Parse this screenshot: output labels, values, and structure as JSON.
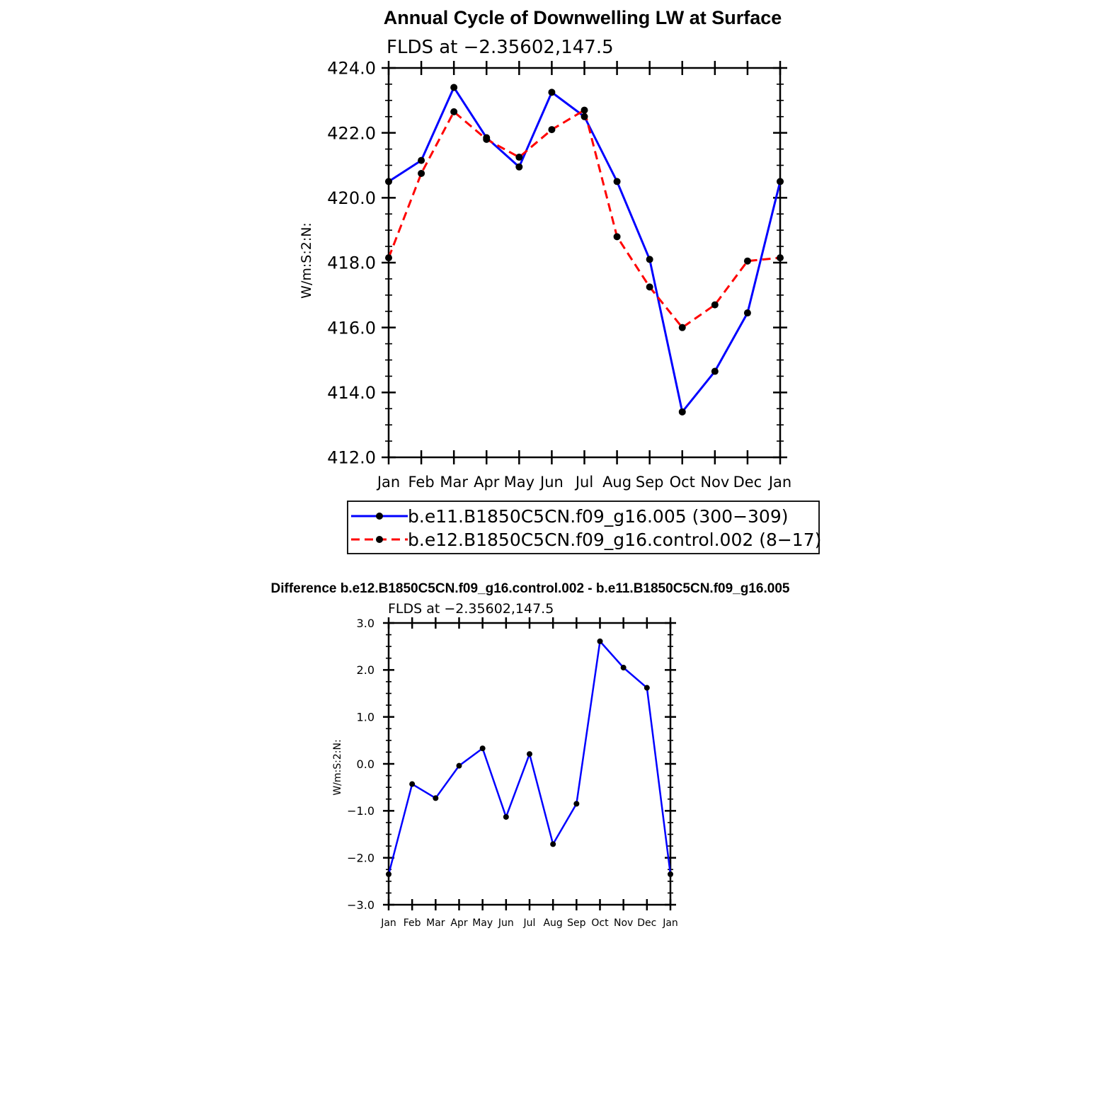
{
  "chart_data": [
    {
      "type": "line",
      "title": "Annual Cycle of Downwelling LW at Surface",
      "subtitle": "FLDS at −2.35602,147.5",
      "ylabel": "W/m:S:2:N:",
      "ylim": [
        412.0,
        424.0
      ],
      "yticks": [
        "412.0",
        "414.0",
        "416.0",
        "418.0",
        "420.0",
        "422.0",
        "424.0"
      ],
      "categories": [
        "Jan",
        "Feb",
        "Mar",
        "Apr",
        "May",
        "Jun",
        "Jul",
        "Aug",
        "Sep",
        "Oct",
        "Nov",
        "Dec",
        "Jan"
      ],
      "legend_position": "bottom",
      "series": [
        {
          "name": "b.e11.B1850C5CN.f09_g16.005 (300−309)",
          "color": "#0000ff",
          "dash": "solid",
          "values": [
            420.5,
            421.15,
            423.4,
            421.85,
            420.95,
            423.25,
            422.5,
            420.5,
            418.1,
            413.4,
            414.65,
            416.45,
            420.5
          ]
        },
        {
          "name": "b.e12.B1850C5CN.f09_g16.control.002 (8−17)",
          "color": "#ff0000",
          "dash": "dashed",
          "values": [
            418.15,
            420.75,
            422.65,
            421.8,
            421.25,
            422.1,
            422.7,
            418.8,
            417.25,
            416.0,
            416.7,
            418.05,
            418.15
          ]
        }
      ]
    },
    {
      "type": "line",
      "title": "Difference b.e12.B1850C5CN.f09_g16.control.002 - b.e11.B1850C5CN.f09_g16.005",
      "subtitle": "FLDS at −2.35602,147.5",
      "ylabel": "W/m:S:2:N:",
      "ylim": [
        -3.0,
        3.0
      ],
      "yticks": [
        "−3.0",
        "−2.0",
        "−1.0",
        "0.0",
        "1.0",
        "2.0",
        "3.0"
      ],
      "categories": [
        "Jan",
        "Feb",
        "Mar",
        "Apr",
        "May",
        "Jun",
        "Jul",
        "Aug",
        "Sep",
        "Oct",
        "Nov",
        "Dec",
        "Jan"
      ],
      "series": [
        {
          "color": "#0000ff",
          "dash": "solid",
          "values": [
            -2.35,
            -0.43,
            -0.73,
            -0.04,
            0.33,
            -1.13,
            0.21,
            -1.71,
            -0.85,
            2.61,
            2.05,
            1.62,
            -2.35
          ]
        }
      ]
    }
  ]
}
